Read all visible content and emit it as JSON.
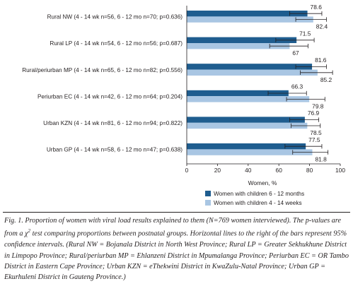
{
  "chart_data": {
    "type": "bar",
    "orientation": "horizontal",
    "categories": [
      "Rural NW (4 - 14 wk n=56, 6 - 12 mo n=70; p=0.636)",
      "Rural LP (4 - 14 wk n=54, 6 - 12 mo n=56; p=0.687)",
      "Rural/periurban MP (4 - 14 wk n=65, 6 - 12 mo n=82; p=0.556)",
      "Periurban EC (4 - 14 wk n=42, 6 - 12 mo n=64; p=0.204)",
      "Urban KZN (4 - 14 wk n=81, 6 - 12 mo n=94; p=0.822)",
      "Urban GP (4 - 14 wk n=58, 6 - 12 mo n=47; p=0.638)"
    ],
    "series": [
      {
        "name": "Women with children 6 - 12 months",
        "color": "#1f5d8f",
        "values": [
          78.6,
          71.5,
          81.6,
          66.3,
          76.9,
          77.5
        ],
        "value_labels": [
          "78.6",
          "71.5",
          "81.6",
          "66.3",
          "76.9",
          "77.5"
        ],
        "ci": [
          [
            67,
            88
          ],
          [
            58,
            83
          ],
          [
            71,
            91
          ],
          [
            53,
            78
          ],
          [
            67,
            86
          ],
          [
            64,
            88
          ]
        ]
      },
      {
        "name": "Women with children 4 - 14 weeks",
        "color": "#a9c6e3",
        "values": [
          82.4,
          67,
          85.2,
          79.8,
          78.5,
          81.8
        ],
        "value_labels": [
          "82.4",
          "67",
          "85.2",
          "79.8",
          "78.5",
          "81.8"
        ],
        "ci": [
          [
            71,
            91
          ],
          [
            54,
            79
          ],
          [
            74,
            95
          ],
          [
            65,
            90
          ],
          [
            68,
            87
          ],
          [
            69,
            92
          ]
        ]
      }
    ],
    "xlabel": "Women, %",
    "xlim": [
      0,
      100
    ],
    "xticks": [
      "0",
      "20",
      "40",
      "60",
      "80",
      "100"
    ],
    "legend_position": "bottom",
    "grid": false
  },
  "caption": {
    "part1": "Fig. 1. Proportion of women with viral load results explained to them (N=769 women interviewed). The p-values are from a χ",
    "superscript": "2",
    "part2": " test comparing proportions between postnatal groups. Horizontal lines to the right of the bars represent 95% confidence intervals. (Rural NW = Bojanala District in North West Province; Rural LP = Greater Sekhukhune District in Limpopo Province; Rural/periurban MP = Ehlanzeni District in Mpumalanga Province; Periurban EC = OR Tambo District in Eastern Cape Province; Urban KZN = eThekwini District in KwaZulu-Natal Province; Urban GP = Ekurhuleni District in Gauteng Province.)"
  }
}
